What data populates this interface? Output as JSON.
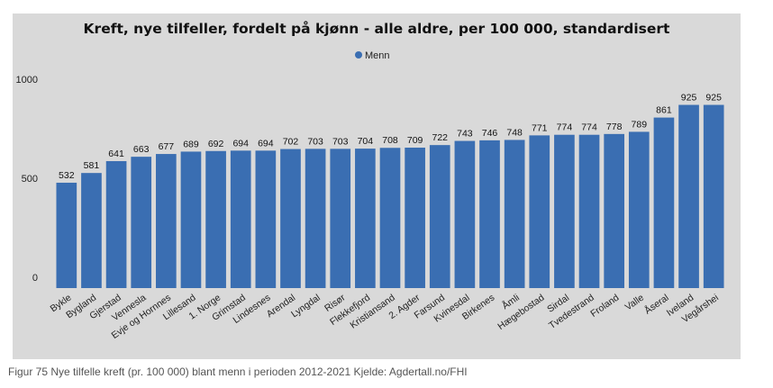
{
  "caption": "Figur 75 Nye tilfelle kreft (pr. 100 000) blant menn i perioden 2012-2021 Kjelde: Agdertall.no/FHI",
  "chart_data": {
    "type": "bar",
    "title": "Kreft, nye tilfeller, fordelt på kjønn - alle aldre, per 100 000, standardisert",
    "legend": {
      "label": "Menn",
      "position": "top-center",
      "color": "#3a6eb2"
    },
    "ylim": [
      0,
      1000
    ],
    "yticks": [
      0,
      500,
      1000
    ],
    "grid": false,
    "categories": [
      "Bykle",
      "Bygland",
      "Gjerstad",
      "Vennesla",
      "Evje og Hornnes",
      "Lillesand",
      "1. Norge",
      "Grimstad",
      "Lindesnes",
      "Arendal",
      "Lyngdal",
      "Risør",
      "Flekkefjord",
      "Kristiansand",
      "2. Agder",
      "Farsund",
      "Kvinesdal",
      "Birkenes",
      "Åmli",
      "Hægebostad",
      "Sirdal",
      "Tvedestrand",
      "Froland",
      "Valle",
      "Åseral",
      "Iveland",
      "Vegårshei"
    ],
    "series": [
      {
        "name": "Menn",
        "color": "#3a6eb2",
        "values": [
          532,
          581,
          641,
          663,
          677,
          689,
          692,
          694,
          694,
          702,
          703,
          703,
          704,
          708,
          709,
          722,
          743,
          746,
          748,
          771,
          774,
          774,
          778,
          789,
          861,
          925,
          925
        ]
      }
    ]
  }
}
